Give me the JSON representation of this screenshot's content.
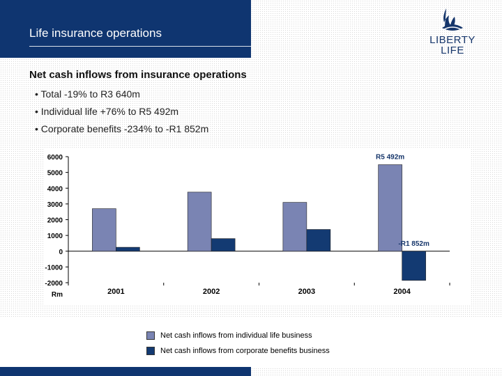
{
  "header": {
    "title": "Life insurance operations"
  },
  "logo": {
    "line1": "LIBERTY",
    "line2": "LIFE"
  },
  "subtitle": "Net cash inflows from insurance operations",
  "bullets": [
    "• Total -19% to R3 640m",
    "• Individual life +76% to R5 492m",
    "• Corporate benefits -234% to -R1 852m"
  ],
  "colors": {
    "navy": "#0f3570",
    "individual": "#7a84b3",
    "corporate": "#133a72"
  },
  "chart_data": {
    "type": "bar",
    "categories": [
      "2001",
      "2002",
      "2003",
      "2004"
    ],
    "series": [
      {
        "name": "Net cash inflows from individual life business",
        "values": [
          2700,
          3750,
          3100,
          5492
        ]
      },
      {
        "name": "Net cash inflows from corporate benefits business",
        "values": [
          250,
          800,
          1380,
          -1852
        ]
      }
    ],
    "ylim": [
      -2000,
      6000
    ],
    "yticks": [
      6000,
      5000,
      4000,
      3000,
      2000,
      1000,
      0,
      -1000,
      -2000
    ],
    "ylabel": "Rm",
    "annotations": [
      "R5 492m",
      "-R1 852m"
    ],
    "legend": "bottom-center"
  }
}
